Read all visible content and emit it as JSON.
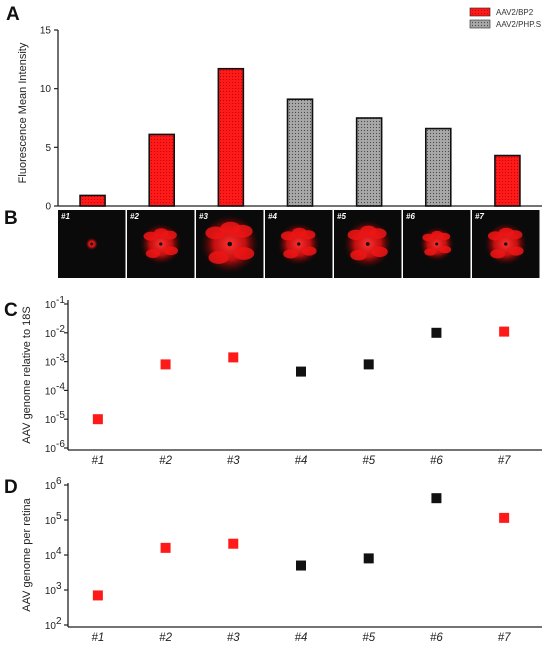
{
  "panels": {
    "a": "A",
    "b": "B",
    "c": "C",
    "d": "D"
  },
  "colors": {
    "bp2": "#ff1a1a",
    "phps": "#9a9a9a",
    "black_marker": "#111111",
    "image_bg": "#0a0a0a"
  },
  "legend": [
    {
      "label": "AAV2/BP2",
      "color": "#ff1a1a",
      "icon": "dotted-red-swatch"
    },
    {
      "label": "AAV2/PHP.S",
      "color": "#9a9a9a",
      "icon": "dotted-grey-swatch"
    }
  ],
  "images": {
    "labels": [
      "#1",
      "#2",
      "#3",
      "#4",
      "#5",
      "#6",
      "#7"
    ],
    "spot_spread": [
      0.18,
      0.6,
      0.85,
      0.62,
      0.7,
      0.5,
      0.62
    ]
  },
  "chart_data": [
    {
      "type": "bar",
      "panel": "A",
      "ylabel": "Fluorescence Mean Intensity",
      "ylim": [
        0,
        15
      ],
      "yticks": [
        "0",
        "5",
        "10",
        "15"
      ],
      "xlabel": "",
      "values": [
        0.9,
        6.1,
        11.7,
        9.1,
        7.5,
        6.6,
        4.3
      ],
      "groups": [
        "AAV2/BP2",
        "AAV2/BP2",
        "AAV2/BP2",
        "AAV2/PHP.S",
        "AAV2/PHP.S",
        "AAV2/PHP.S",
        "AAV2/BP2"
      ],
      "legend_position": "top-right",
      "grid": false
    },
    {
      "type": "scatter",
      "panel": "C",
      "scale": "log",
      "ylabel": "AAV genome relative to 18S",
      "ylim": [
        1e-06,
        0.1
      ],
      "yticks": [
        {
          "base": "10",
          "exp": "-6"
        },
        {
          "base": "10",
          "exp": "-5"
        },
        {
          "base": "10",
          "exp": "-4"
        },
        {
          "base": "10",
          "exp": "-3"
        },
        {
          "base": "10",
          "exp": "-2"
        },
        {
          "base": "10",
          "exp": "-1"
        }
      ],
      "categories": [
        "#1",
        "#2",
        "#3",
        "#4",
        "#5",
        "#6",
        "#7"
      ],
      "values": [
        1e-05,
        0.0008,
        0.0014,
        0.00045,
        0.0008,
        0.01,
        0.011
      ],
      "colors": [
        "red",
        "red",
        "red",
        "black",
        "black",
        "black",
        "red"
      ],
      "grid": false
    },
    {
      "type": "scatter",
      "panel": "D",
      "scale": "log",
      "ylabel": "AAV genome per retina",
      "ylim": [
        100,
        1000000
      ],
      "yticks": [
        {
          "base": "10",
          "exp": "2"
        },
        {
          "base": "10",
          "exp": "3"
        },
        {
          "base": "10",
          "exp": "4"
        },
        {
          "base": "10",
          "exp": "5"
        },
        {
          "base": "10",
          "exp": "6"
        }
      ],
      "categories": [
        "#1",
        "#2",
        "#3",
        "#4",
        "#5",
        "#6",
        "#7"
      ],
      "values": [
        700,
        16000,
        21000,
        5000,
        8000,
        420000,
        115000
      ],
      "colors": [
        "red",
        "red",
        "red",
        "black",
        "black",
        "black",
        "red"
      ],
      "grid": false
    }
  ]
}
